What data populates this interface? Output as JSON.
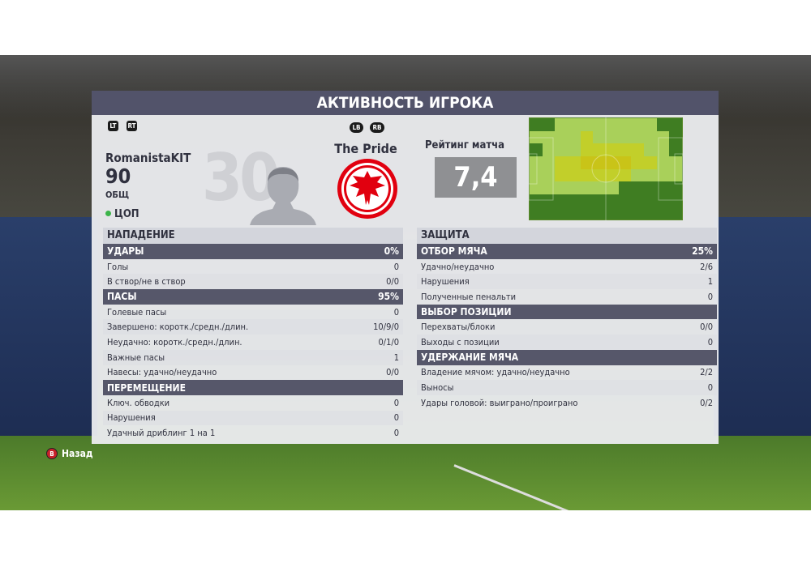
{
  "title": "АКТИВНОСТЬ ИГРОКА",
  "buttons": {
    "lt": "LT",
    "rt": "RT",
    "lb": "LB",
    "rb": "RB",
    "back_key": "B",
    "back_label": "Назад"
  },
  "player": {
    "number": "30",
    "name": "RomanistaKIT",
    "overall": "90",
    "overall_label": "ОБЩ",
    "position": "ЦОП",
    "position_color": "#3cb44a"
  },
  "team": {
    "name": "The Pride",
    "crest": "eagle-crest-icon",
    "crest_color": "#e1000f"
  },
  "rating": {
    "label": "Рейтинг матча",
    "value": "7,4"
  },
  "heatmap": {
    "levels": [
      [
        0,
        0,
        1,
        1,
        1,
        1,
        1,
        1,
        1,
        1,
        0,
        0
      ],
      [
        1,
        1,
        1,
        1,
        2,
        1,
        1,
        1,
        1,
        1,
        1,
        0
      ],
      [
        0,
        1,
        1,
        1,
        2,
        2,
        2,
        2,
        2,
        1,
        1,
        0
      ],
      [
        1,
        1,
        2,
        2,
        3,
        3,
        3,
        3,
        2,
        2,
        1,
        1
      ],
      [
        1,
        1,
        2,
        2,
        2,
        2,
        2,
        2,
        1,
        1,
        1,
        1
      ],
      [
        1,
        1,
        1,
        1,
        1,
        1,
        1,
        0,
        0,
        0,
        0,
        0
      ],
      [
        0,
        0,
        0,
        0,
        0,
        0,
        0,
        0,
        0,
        0,
        0,
        0
      ],
      [
        0,
        0,
        0,
        0,
        0,
        0,
        0,
        0,
        0,
        0,
        0,
        0
      ]
    ],
    "colors": [
      "#3f7d22",
      "#a9d05a",
      "#c2cf2a",
      "#c9c418"
    ]
  },
  "attack": {
    "header": "НАПАДЕНИЕ",
    "rows": [
      {
        "label": "УДАРЫ",
        "value": "0%",
        "section": true
      },
      {
        "label": "Голы",
        "value": "0"
      },
      {
        "label": "В створ/не в створ",
        "value": "0/0"
      },
      {
        "label": "ПАСЫ",
        "value": "95%",
        "section": true
      },
      {
        "label": "Голевые пасы",
        "value": "0"
      },
      {
        "label": "Завершено: коротк./средн./длин.",
        "value": "10/9/0"
      },
      {
        "label": "Неудачно: коротк./средн./длин.",
        "value": "0/1/0"
      },
      {
        "label": "Важные пасы",
        "value": "1"
      },
      {
        "label": "Навесы: удачно/неудачно",
        "value": "0/0"
      },
      {
        "label": "ПЕРЕМЕЩЕНИЕ",
        "value": "",
        "section": true
      },
      {
        "label": "Ключ. обводки",
        "value": "0"
      },
      {
        "label": "Нарушения",
        "value": "0"
      },
      {
        "label": "Удачный дриблинг 1 на 1",
        "value": "0"
      }
    ]
  },
  "defense": {
    "header": "ЗАЩИТА",
    "rows": [
      {
        "label": "ОТБОР МЯЧА",
        "value": "25%",
        "section": true
      },
      {
        "label": "Удачно/неудачно",
        "value": "2/6"
      },
      {
        "label": "Нарушения",
        "value": "1"
      },
      {
        "label": "Полученные пенальти",
        "value": "0"
      },
      {
        "label": "ВЫБОР ПОЗИЦИИ",
        "value": "",
        "section": true
      },
      {
        "label": "Перехваты/блоки",
        "value": "0/0"
      },
      {
        "label": "Выходы с позиции",
        "value": "0"
      },
      {
        "label": "УДЕРЖАНИЕ МЯЧА",
        "value": "",
        "section": true
      },
      {
        "label": "Владение мячом: удачно/неудачно",
        "value": "2/2"
      },
      {
        "label": "Выносы",
        "value": "0"
      },
      {
        "label": "Удары головой: выиграно/проиграно",
        "value": "0/2"
      }
    ]
  }
}
